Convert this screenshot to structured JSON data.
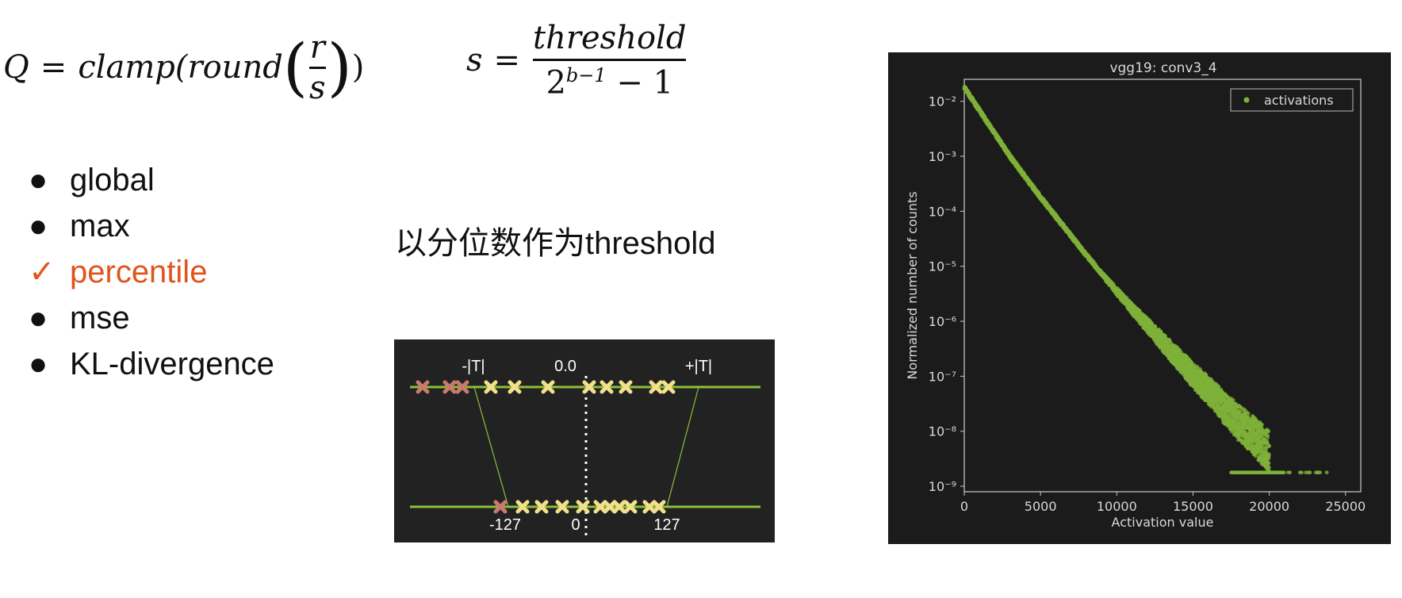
{
  "formula_q": {
    "lhs": "Q",
    "eq": "=",
    "func": "clamp(round",
    "num": "r",
    "den": "s",
    "close": ")"
  },
  "formula_s": {
    "lhs": "s",
    "eq": "=",
    "num": "threshold",
    "den_base": "2",
    "den_exp": "b−1",
    "den_rest": "− 1"
  },
  "methods": [
    {
      "marker": "●",
      "label": "global"
    },
    {
      "marker": "●",
      "label": "max"
    },
    {
      "marker": "✓",
      "label": "percentile",
      "selected": true
    },
    {
      "marker": "●",
      "label": "mse"
    },
    {
      "marker": "●",
      "label": "KL-divergence"
    }
  ],
  "caption": "以分位数作为threshold",
  "diagram": {
    "top_labels": [
      "-|T|",
      "0.0",
      "+|T|"
    ],
    "bottom_labels": [
      "-127",
      "0",
      "127"
    ],
    "colors": {
      "line": "#8cbf3a",
      "clipped": "#c97a6e",
      "kept": "#f2e08a",
      "background": "#222222"
    }
  },
  "chart_data": {
    "type": "scatter",
    "title": "vgg19: conv3_4",
    "xlabel": "Activation value",
    "ylabel": "Normalized number of counts",
    "xlim": [
      0,
      26000
    ],
    "ylim_log10": [
      -9.1,
      -1.6
    ],
    "x_ticks": [
      0,
      5000,
      10000,
      15000,
      20000,
      25000
    ],
    "y_ticks": [
      {
        "exp": -2,
        "label": "10⁻²"
      },
      {
        "exp": -3,
        "label": "10⁻³"
      },
      {
        "exp": -4,
        "label": "10⁻⁴"
      },
      {
        "exp": -5,
        "label": "10⁻⁵"
      },
      {
        "exp": -6,
        "label": "10⁻⁶"
      },
      {
        "exp": -7,
        "label": "10⁻⁷"
      },
      {
        "exp": -8,
        "label": "10⁻⁸"
      },
      {
        "exp": -9,
        "label": "10⁻⁹"
      }
    ],
    "y_scale": "log",
    "legend": {
      "label": "activations",
      "placement": "top-right"
    },
    "series": [
      {
        "name": "activations",
        "color": "#7fb23a",
        "points": [
          [
            0,
            0.018
          ],
          [
            500,
            0.011
          ],
          [
            1000,
            0.0068
          ],
          [
            2000,
            0.0026
          ],
          [
            3000,
            0.001
          ],
          [
            4000,
            0.00042
          ],
          [
            5000,
            0.00018
          ],
          [
            6000,
            8e-05
          ],
          [
            7000,
            3.6e-05
          ],
          [
            8000,
            1.6e-05
          ],
          [
            9000,
            7.4e-06
          ],
          [
            10000,
            3.5e-06
          ],
          [
            11000,
            1.7e-06
          ],
          [
            12000,
            8.5e-07
          ],
          [
            13000,
            4.2e-07
          ],
          [
            14000,
            2.1e-07
          ],
          [
            15000,
            1.05e-07
          ],
          [
            16000,
            5.5e-08
          ],
          [
            17000,
            2.8e-08
          ],
          [
            18000,
            1.4e-08
          ],
          [
            19000,
            8.5e-09
          ],
          [
            20000,
            4e-09
          ]
        ]
      }
    ]
  }
}
